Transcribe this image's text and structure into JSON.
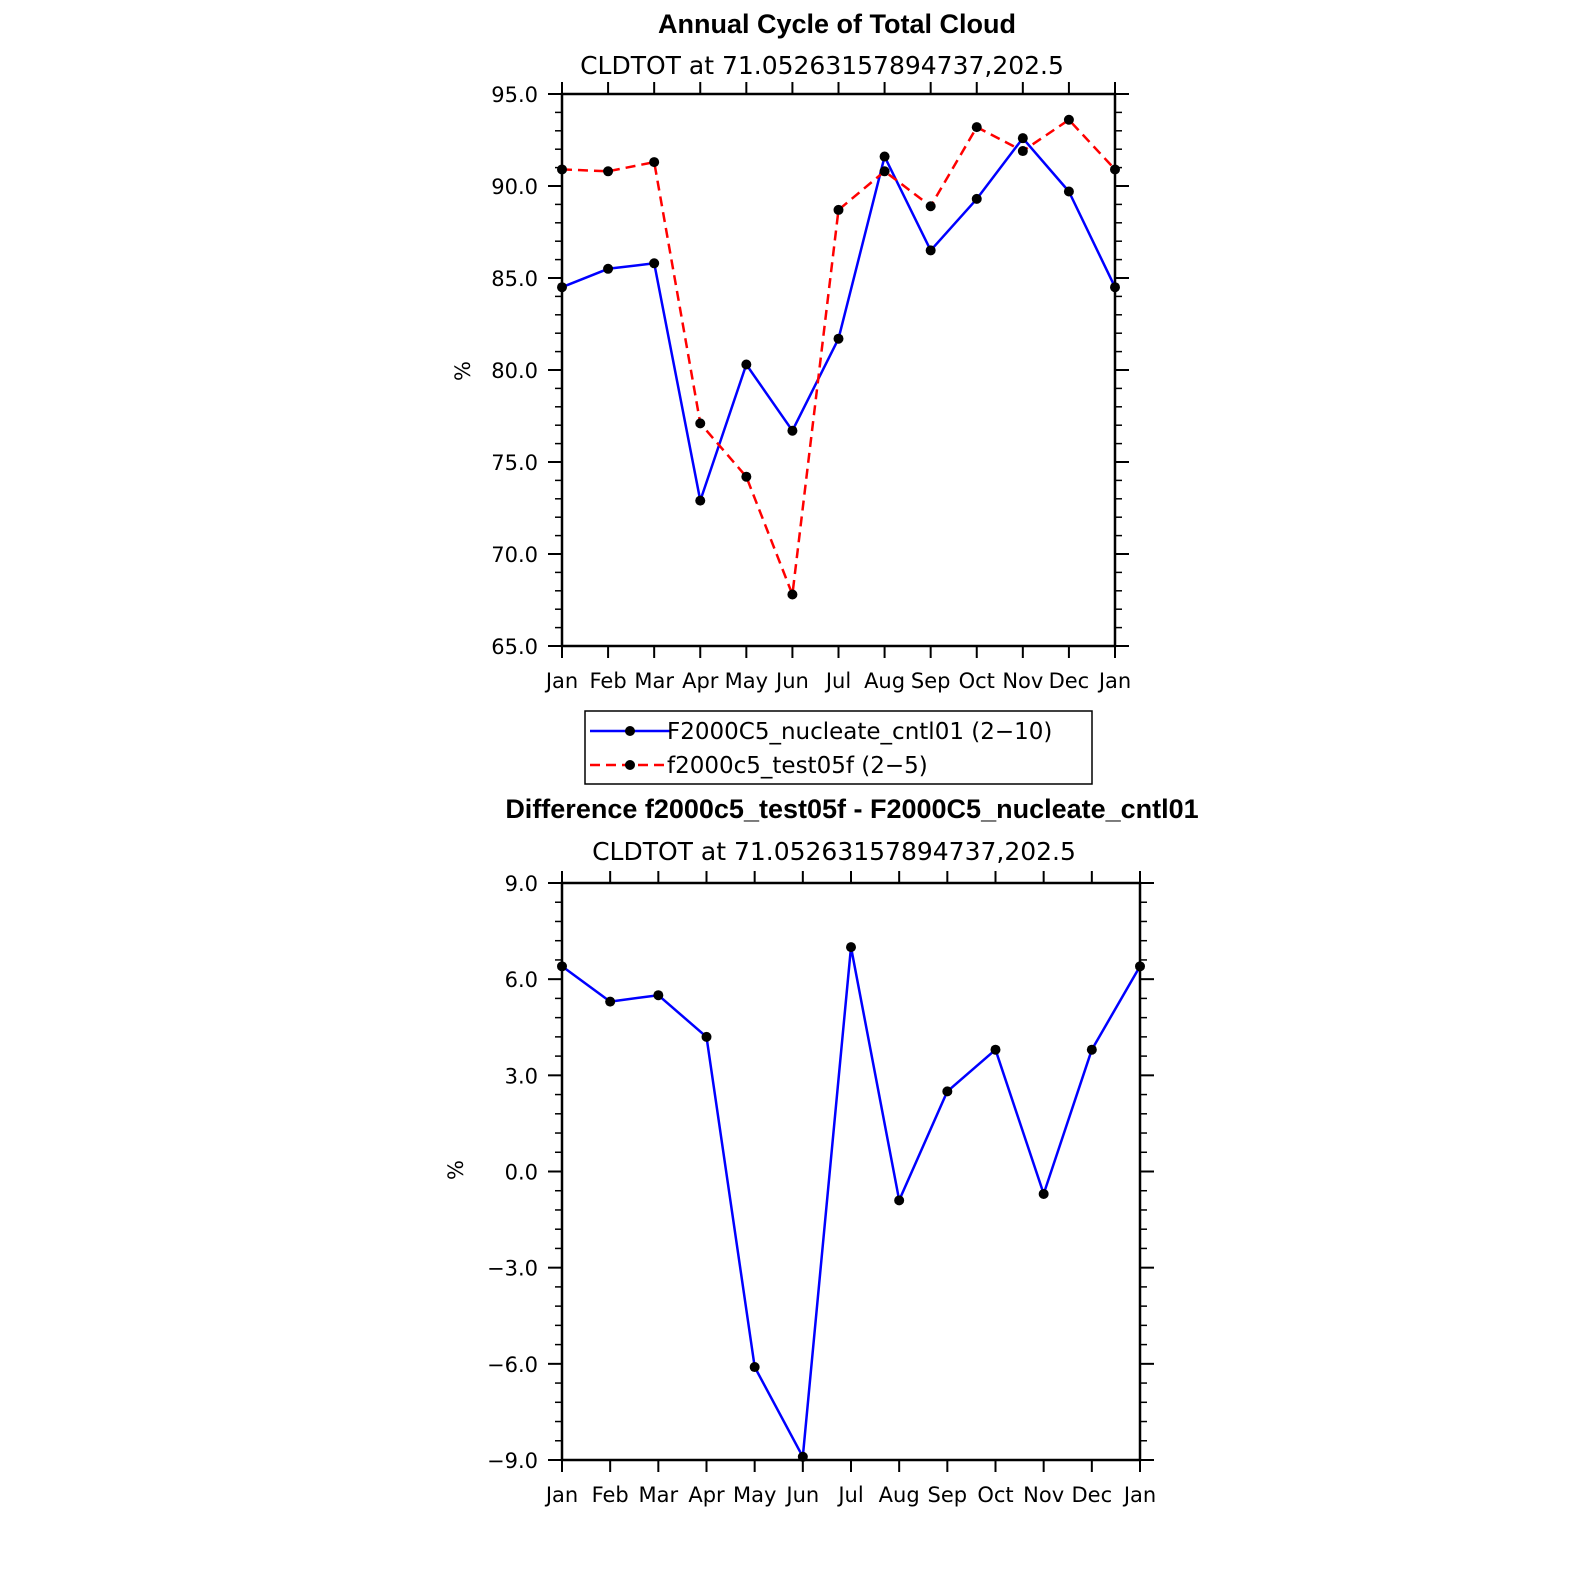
{
  "chart_data": [
    {
      "type": "line",
      "title": "Annual Cycle of Total Cloud",
      "subtitle": "CLDTOT at 71.05263157894737,202.5",
      "ylabel": "%",
      "ylim": [
        65.0,
        95.0
      ],
      "yticks": [
        "65.0",
        "70.0",
        "75.0",
        "80.0",
        "85.0",
        "90.0",
        "95.0"
      ],
      "categories": [
        "Jan",
        "Feb",
        "Mar",
        "Apr",
        "May",
        "Jun",
        "Jul",
        "Aug",
        "Sep",
        "Oct",
        "Nov",
        "Dec",
        "Jan"
      ],
      "series": [
        {
          "name": "F2000C5_nucleate_cntl01 (2−10)",
          "color": "#0000ff",
          "dash": "solid",
          "values": [
            84.5,
            85.5,
            85.8,
            72.9,
            80.3,
            76.7,
            81.7,
            91.6,
            86.5,
            89.3,
            92.6,
            89.7,
            84.5
          ]
        },
        {
          "name": "f2000c5_test05f (2−5)",
          "color": "#ff0000",
          "dash": "dashed",
          "values": [
            90.9,
            90.8,
            91.3,
            77.1,
            74.2,
            67.8,
            88.7,
            90.8,
            88.9,
            93.2,
            91.9,
            93.6,
            90.9
          ]
        }
      ],
      "legend": "below"
    },
    {
      "type": "line",
      "title": "Difference f2000c5_test05f - F2000C5_nucleate_cntl01",
      "subtitle": "CLDTOT at 71.05263157894737,202.5",
      "ylabel": "%",
      "ylim": [
        -9.0,
        9.0
      ],
      "yticks": [
        "−9.0",
        "−6.0",
        "−3.0",
        "0.0",
        "3.0",
        "6.0",
        "9.0"
      ],
      "categories": [
        "Jan",
        "Feb",
        "Mar",
        "Apr",
        "May",
        "Jun",
        "Jul",
        "Aug",
        "Sep",
        "Oct",
        "Nov",
        "Dec",
        "Jan"
      ],
      "series": [
        {
          "color": "#0000ff",
          "dash": "solid",
          "values": [
            6.4,
            5.3,
            5.5,
            4.2,
            -6.1,
            -8.9,
            7.0,
            -0.9,
            2.5,
            3.8,
            -0.7,
            3.8,
            6.4
          ]
        }
      ]
    }
  ]
}
